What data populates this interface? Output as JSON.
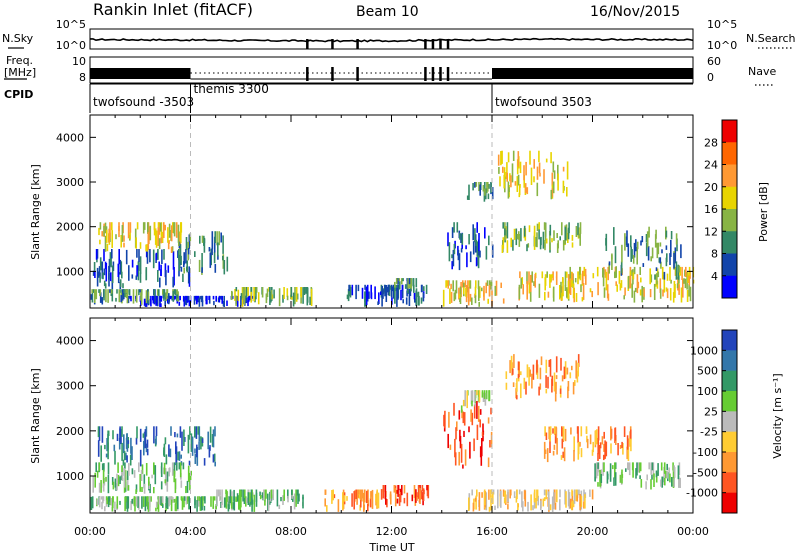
{
  "header": {
    "station": "Rankin Inlet (fitACF)",
    "beam": "Beam 10",
    "date": "16/Nov/2015"
  },
  "chart_data": [
    {
      "type": "line",
      "panel": "noise",
      "left_label": "N.Sky",
      "right_label": "N.Search",
      "left_ticks": [
        "10^5",
        "10^0"
      ],
      "right_ticks": [
        "10^5",
        "10^0"
      ],
      "series": [
        {
          "name": "N.Sky",
          "style": "solid"
        },
        {
          "name": "N.Search",
          "style": "dotted"
        }
      ],
      "x": [
        0,
        2,
        4,
        6,
        8,
        10,
        12,
        14,
        16,
        18,
        20,
        22,
        24
      ],
      "values": [
        1.5,
        1.4,
        1.3,
        1.1,
        1.0,
        0.9,
        1.0,
        1.3,
        1.4,
        1.6,
        1.5,
        1.5,
        1.4
      ],
      "dropouts_hours": [
        8.6,
        9.6,
        10.6,
        13.3,
        13.6,
        13.9,
        14.2
      ]
    },
    {
      "type": "line",
      "panel": "frequency",
      "left_label_lines": [
        "Freq.",
        "[MHz]"
      ],
      "right_label": "Nave",
      "left_ticks": [
        "10",
        "8"
      ],
      "right_ticks": [
        "60",
        "0"
      ],
      "series": [
        {
          "name": "Freq.",
          "style": "solid"
        },
        {
          "name": "Nave",
          "style": "dotted"
        }
      ]
    },
    {
      "type": "table",
      "panel": "cpid",
      "label": "CPID",
      "segments": [
        {
          "start": 0,
          "end": 4,
          "label": "twofsound -3503"
        },
        {
          "start": 4,
          "end": 16,
          "label": "themis 3300"
        },
        {
          "start": 16,
          "end": 24,
          "label": "twofsound 3503"
        }
      ]
    },
    {
      "type": "heatmap",
      "panel": "power",
      "ylabel": "Slant Range [km]",
      "yticks": [
        1000,
        2000,
        3000,
        4000
      ],
      "ylim": [
        180,
        4500
      ],
      "xlim": [
        0,
        24
      ],
      "colorbar_label": "Power [dB]",
      "colorbar_ticks": [
        "28",
        "24",
        "20",
        "16",
        "12",
        "8",
        "4"
      ],
      "colorbar_colors": [
        "#ee0000",
        "#ff6600",
        "#ff9933",
        "#e8d400",
        "#88b444",
        "#338866",
        "#1144aa",
        "#0000ff"
      ],
      "regions": [
        {
          "t": [
            0.1,
            4.0
          ],
          "r": [
            600,
            1500
          ],
          "level": 6
        },
        {
          "t": [
            0.3,
            3.7
          ],
          "r": [
            1400,
            2100
          ],
          "level": 3
        },
        {
          "t": [
            3.5,
            5.5
          ],
          "r": [
            900,
            1900
          ],
          "level": 5
        },
        {
          "t": [
            1.5,
            6.5
          ],
          "r": [
            200,
            450
          ],
          "level": 7
        },
        {
          "t": [
            0.0,
            3.5
          ],
          "r": [
            250,
            600
          ],
          "level": 5
        },
        {
          "t": [
            5.6,
            8.8
          ],
          "r": [
            200,
            650
          ],
          "level": 4
        },
        {
          "t": [
            10.2,
            13.5
          ],
          "r": [
            200,
            700
          ],
          "level": 6
        },
        {
          "t": [
            12.0,
            13.0
          ],
          "r": [
            550,
            850
          ],
          "level": 5
        },
        {
          "t": [
            14.2,
            16.0
          ],
          "r": [
            1000,
            2100
          ],
          "level": 6
        },
        {
          "t": [
            15.0,
            16.0
          ],
          "r": [
            2500,
            3000
          ],
          "level": 5
        },
        {
          "t": [
            14.0,
            16.5
          ],
          "r": [
            200,
            800
          ],
          "level": 3
        },
        {
          "t": [
            17.0,
            19.5
          ],
          "r": [
            300,
            1000
          ],
          "level": 3
        },
        {
          "t": [
            19.0,
            24.0
          ],
          "r": [
            300,
            1100
          ],
          "level": 3
        },
        {
          "t": [
            20.5,
            23.5
          ],
          "r": [
            800,
            2000
          ],
          "level": 5
        },
        {
          "t": [
            16.3,
            19.5
          ],
          "r": [
            1400,
            2100
          ],
          "level": 4
        },
        {
          "t": [
            16.2,
            19.0
          ],
          "r": [
            2600,
            3700
          ],
          "level": 3
        }
      ]
    },
    {
      "type": "heatmap",
      "panel": "velocity",
      "ylabel": "Slant Range [km]",
      "yticks": [
        1000,
        2000,
        3000,
        4000
      ],
      "ylim": [
        180,
        4500
      ],
      "xlim": [
        0,
        24
      ],
      "xlabel": "Time UT",
      "xticks": [
        "00:00",
        "04:00",
        "08:00",
        "12:00",
        "16:00",
        "20:00",
        "00:00"
      ],
      "colorbar_label": "Velocity [m s⁻¹]",
      "colorbar_ticks": [
        "1000",
        "500",
        "100",
        "25",
        "-25",
        "-100",
        "-500",
        "-1000"
      ],
      "colorbar_colors": [
        "#2244bb",
        "#3377aa",
        "#339966",
        "#66cc33",
        "#bbbbbb",
        "#ffcc33",
        "#ff9933",
        "#ff5522",
        "#ee0000"
      ],
      "regions": [
        {
          "t": [
            0.3,
            5.0
          ],
          "r": [
            1200,
            2100
          ],
          "level": 1
        },
        {
          "t": [
            0.0,
            4.0
          ],
          "r": [
            600,
            1300
          ],
          "level": 3
        },
        {
          "t": [
            0.0,
            6.5
          ],
          "r": [
            200,
            550
          ],
          "level": 3
        },
        {
          "t": [
            5.0,
            8.5
          ],
          "r": [
            200,
            700
          ],
          "level": 3
        },
        {
          "t": [
            9.3,
            11.5
          ],
          "r": [
            200,
            700
          ],
          "level": 6
        },
        {
          "t": [
            11.5,
            13.5
          ],
          "r": [
            300,
            800
          ],
          "level": 7
        },
        {
          "t": [
            14.0,
            16.0
          ],
          "r": [
            1100,
            2700
          ],
          "level": 7
        },
        {
          "t": [
            14.7,
            15.9
          ],
          "r": [
            2400,
            2900
          ],
          "level": 4
        },
        {
          "t": [
            15.0,
            20.0
          ],
          "r": [
            200,
            700
          ],
          "level": 5
        },
        {
          "t": [
            18.0,
            21.5
          ],
          "r": [
            1300,
            2100
          ],
          "level": 6
        },
        {
          "t": [
            20.0,
            23.5
          ],
          "r": [
            700,
            1300
          ],
          "level": 3
        },
        {
          "t": [
            16.5,
            19.5
          ],
          "r": [
            2600,
            3700
          ],
          "level": 6
        }
      ]
    }
  ]
}
